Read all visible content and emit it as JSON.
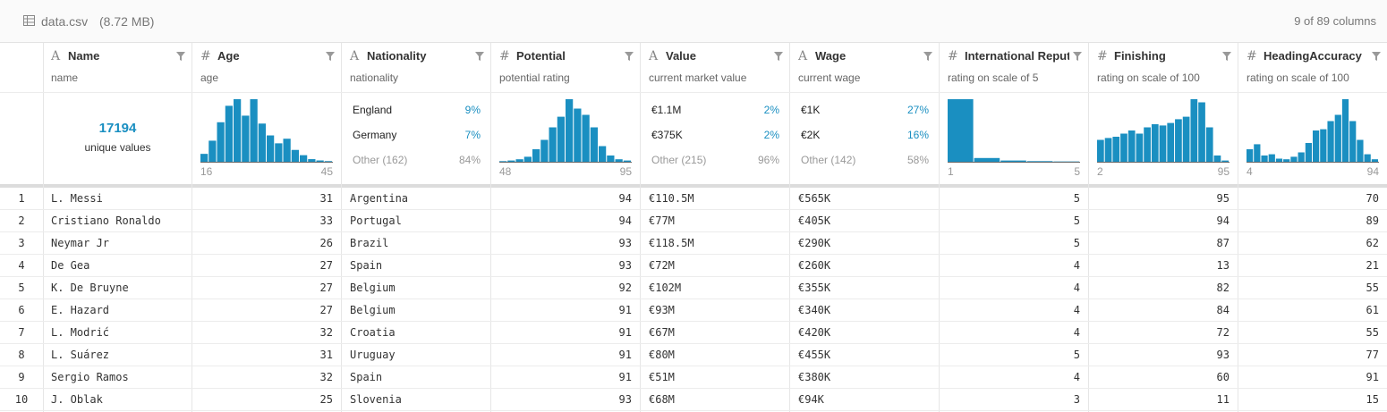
{
  "header": {
    "file": "data.csv",
    "size": "(8.72 MB)",
    "columns_shown": "9 of 89 columns"
  },
  "columns": [
    {
      "icon": "A",
      "name": "Name",
      "description": "name",
      "summary": {
        "count": "17194",
        "label": "unique values"
      }
    },
    {
      "icon": "#",
      "name": "Age",
      "description": "age",
      "summary": {
        "counts": [
          12,
          32,
          60,
          85,
          95,
          70,
          95,
          58,
          40,
          28,
          35,
          18,
          10,
          4,
          2,
          1
        ],
        "min": "16",
        "max": "45"
      }
    },
    {
      "icon": "A",
      "name": "Nationality",
      "description": "nationality",
      "summary": {
        "items": [
          {
            "label": "England",
            "pct": "9%"
          },
          {
            "label": "Germany",
            "pct": "7%"
          }
        ],
        "other": {
          "label": "Other (162)",
          "pct": "84%"
        }
      }
    },
    {
      "icon": "#",
      "name": "Potential",
      "description": "potential rating",
      "summary": {
        "counts": [
          1,
          2,
          4,
          8,
          20,
          35,
          55,
          72,
          100,
          85,
          75,
          55,
          25,
          10,
          4,
          2
        ],
        "min": "48",
        "max": "95"
      }
    },
    {
      "icon": "A",
      "name": "Value",
      "description": "current market value",
      "summary": {
        "items": [
          {
            "label": "€1.1M",
            "pct": "2%"
          },
          {
            "label": "€375K",
            "pct": "2%"
          }
        ],
        "other": {
          "label": "Other (215)",
          "pct": "96%"
        }
      }
    },
    {
      "icon": "A",
      "name": "Wage",
      "description": "current wage",
      "summary": {
        "items": [
          {
            "label": "€1K",
            "pct": "27%"
          },
          {
            "label": "€2K",
            "pct": "16%"
          }
        ],
        "other": {
          "label": "Other (142)",
          "pct": "58%"
        }
      }
    },
    {
      "icon": "#",
      "name": "International Reput",
      "description": "rating on scale of 5",
      "summary": {
        "counts": [
          100,
          6,
          2,
          1,
          0.5
        ],
        "min": "1",
        "max": "5"
      }
    },
    {
      "icon": "#",
      "name": "Finishing",
      "description": "rating on scale of 100",
      "summary": {
        "counts": [
          35,
          38,
          40,
          45,
          50,
          45,
          55,
          60,
          58,
          62,
          68,
          72,
          100,
          95,
          55,
          10,
          2
        ],
        "min": "2",
        "max": "95"
      }
    },
    {
      "icon": "#",
      "name": "HeadingAccuracy",
      "description": "rating on scale of 100",
      "summary": {
        "counts": [
          20,
          28,
          10,
          12,
          5,
          4,
          8,
          15,
          30,
          50,
          52,
          65,
          75,
          100,
          65,
          35,
          12,
          4
        ],
        "min": "4",
        "max": "94"
      }
    }
  ],
  "rows": [
    [
      "1",
      "L. Messi",
      "31",
      "Argentina",
      "94",
      "€110.5M",
      "€565K",
      "5",
      "95",
      "70"
    ],
    [
      "2",
      "Cristiano Ronaldo",
      "33",
      "Portugal",
      "94",
      "€77M",
      "€405K",
      "5",
      "94",
      "89"
    ],
    [
      "3",
      "Neymar Jr",
      "26",
      "Brazil",
      "93",
      "€118.5M",
      "€290K",
      "5",
      "87",
      "62"
    ],
    [
      "4",
      "De Gea",
      "27",
      "Spain",
      "93",
      "€72M",
      "€260K",
      "4",
      "13",
      "21"
    ],
    [
      "5",
      "K. De Bruyne",
      "27",
      "Belgium",
      "92",
      "€102M",
      "€355K",
      "4",
      "82",
      "55"
    ],
    [
      "6",
      "E. Hazard",
      "27",
      "Belgium",
      "91",
      "€93M",
      "€340K",
      "4",
      "84",
      "61"
    ],
    [
      "7",
      "L. Modrić",
      "32",
      "Croatia",
      "91",
      "€67M",
      "€420K",
      "4",
      "72",
      "55"
    ],
    [
      "8",
      "L. Suárez",
      "31",
      "Uruguay",
      "91",
      "€80M",
      "€455K",
      "5",
      "93",
      "77"
    ],
    [
      "9",
      "Sergio Ramos",
      "32",
      "Spain",
      "91",
      "€51M",
      "€380K",
      "4",
      "60",
      "91"
    ],
    [
      "10",
      "J. Oblak",
      "25",
      "Slovenia",
      "93",
      "€68M",
      "€94K",
      "3",
      "11",
      "15"
    ]
  ]
}
